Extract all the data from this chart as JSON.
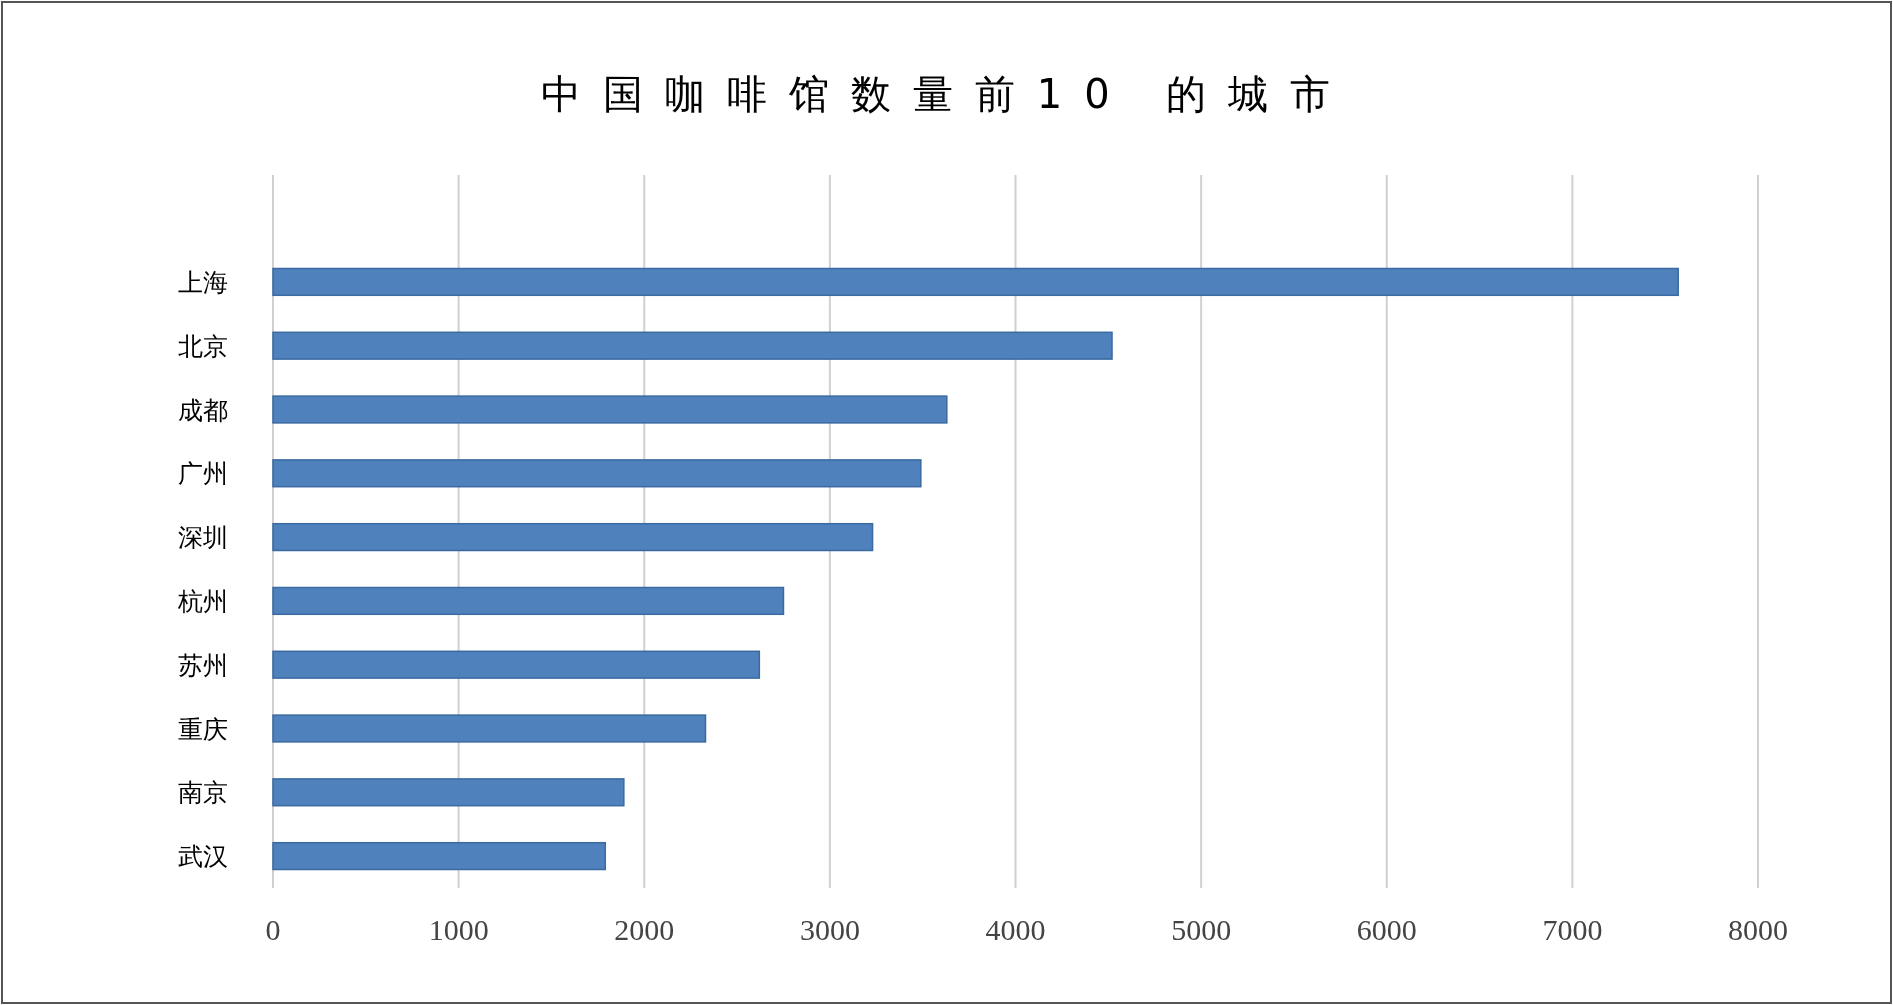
{
  "chart_data": {
    "type": "bar",
    "orientation": "horizontal",
    "title": "中国咖啡馆数量前10 的城市",
    "categories": [
      "上海",
      "北京",
      "成都",
      "广州",
      "深圳",
      "杭州",
      "苏州",
      "重庆",
      "南京",
      "武汉"
    ],
    "values": [
      7570,
      4520,
      3630,
      3490,
      3230,
      2750,
      2620,
      2330,
      1890,
      1790
    ],
    "color": "#4f81bd",
    "xlim": [
      0,
      8000
    ],
    "xticks": [
      0,
      1000,
      2000,
      3000,
      4000,
      5000,
      6000,
      7000,
      8000
    ],
    "grid": "x"
  }
}
